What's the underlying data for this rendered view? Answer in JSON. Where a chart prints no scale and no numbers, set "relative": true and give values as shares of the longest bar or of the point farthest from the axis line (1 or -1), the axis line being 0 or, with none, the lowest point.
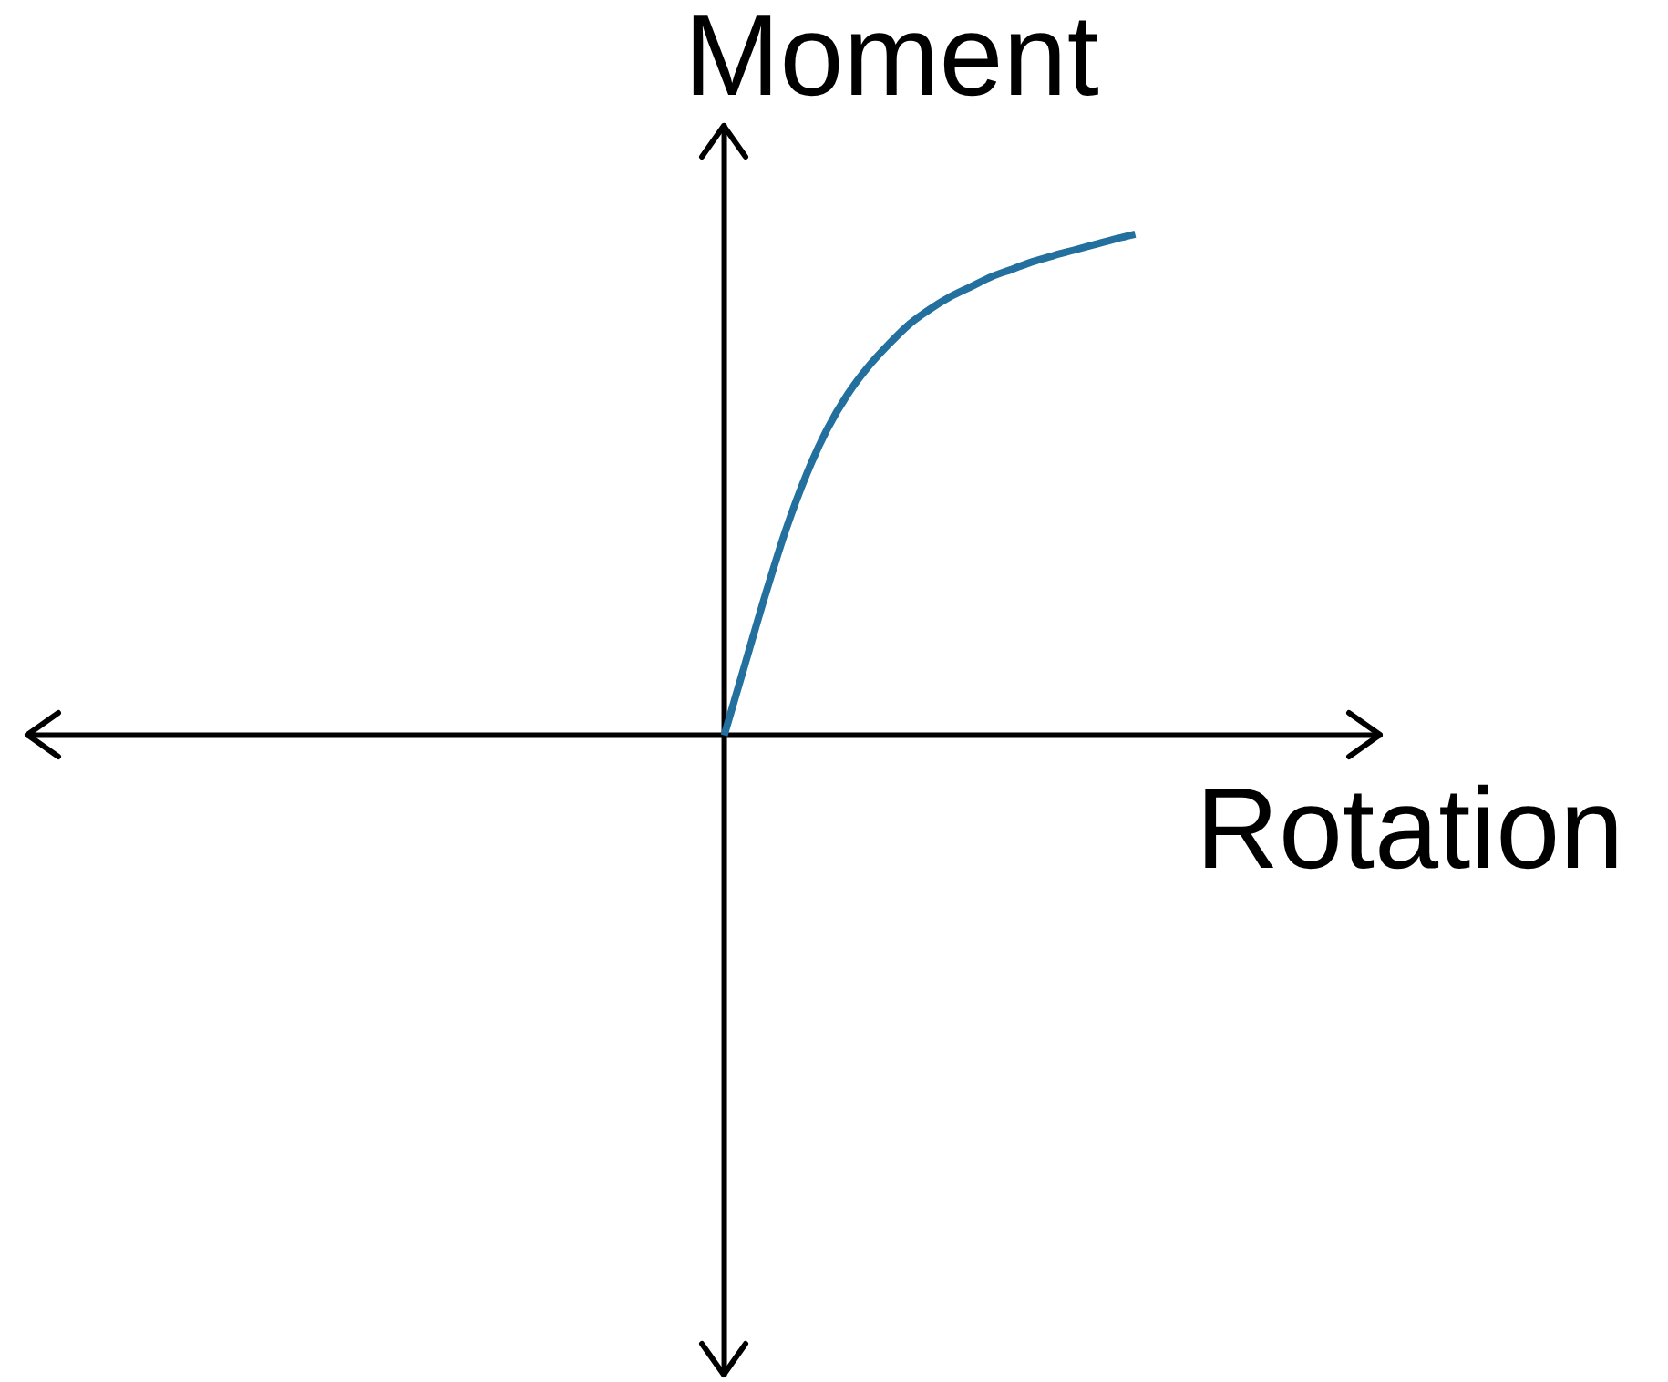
{
  "chart_data": {
    "type": "line",
    "xlabel": "Rotation",
    "ylabel": "Moment",
    "categories": [
      null,
      null,
      null,
      null,
      null,
      null,
      null,
      null,
      null,
      null,
      null,
      null,
      null,
      null,
      null,
      null,
      null,
      null,
      null,
      null,
      null,
      null,
      null,
      null,
      null,
      null,
      null,
      null,
      null,
      null,
      null,
      null,
      null,
      null,
      null,
      null,
      null,
      null,
      null,
      null,
      null,
      null,
      null,
      null,
      null,
      null,
      null,
      null,
      null,
      null,
      null,
      null,
      null,
      null,
      null,
      null,
      null,
      null,
      null,
      null,
      null,
      null,
      null,
      null,
      null,
      null,
      null
    ],
    "series": [
      {
        "color": "#23709f",
        "values": [
          null,
          null,
          null,
          null,
          null,
          null,
          null,
          null,
          null,
          null,
          null,
          null,
          null,
          null,
          null,
          null,
          null,
          null,
          null,
          null,
          null,
          null,
          null,
          null,
          null,
          null,
          null,
          null,
          null,
          null,
          null,
          null,
          null,
          null,
          0,
          0.14,
          0.28,
          0.41,
          0.52,
          0.61,
          0.68,
          0.735,
          0.78,
          0.82,
          0.85,
          0.875,
          0.895,
          0.915,
          0.93,
          0.945,
          0.957,
          0.968,
          0.979,
          0.99,
          1,
          null,
          null,
          null,
          null,
          null,
          null,
          null,
          null,
          null,
          null,
          null,
          null
        ]
      }
    ],
    "relative": true,
    "legend": false,
    "marker": "none",
    "line_style": "solid"
  }
}
